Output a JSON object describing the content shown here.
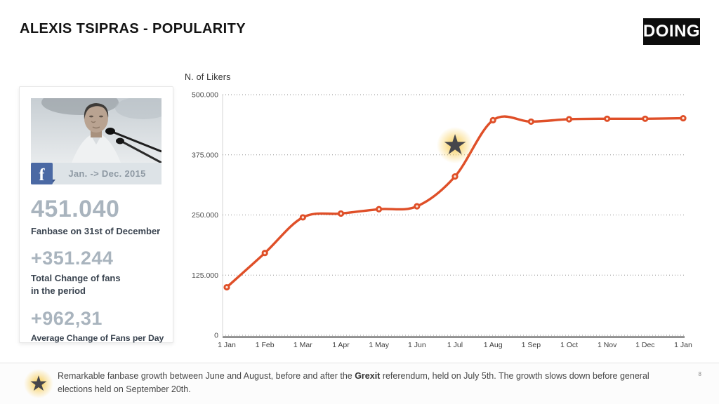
{
  "header": {
    "title": "ALEXIS TSIPRAS - POPULARITY",
    "logo_text": "DOING"
  },
  "profile_card": {
    "photo": "alexis-tsipras-speaking-photo",
    "facebook_icon_letter": "f",
    "period": "Jan. -> Dec. 2015",
    "stats": [
      {
        "value": "451.040",
        "label": "Fanbase on 31st of December"
      },
      {
        "value": "+351.244",
        "label": "Total Change of fans\nin the period"
      },
      {
        "value": "+962,31",
        "label": "Average Change of Fans per Day"
      }
    ]
  },
  "chart_data": {
    "type": "line",
    "title": "N. of Likers",
    "categories": [
      "1 Jan",
      "1 Feb",
      "1 Mar",
      "1 Apr",
      "1 May",
      "1 Jun",
      "1 Jul",
      "1 Aug",
      "1 Sep",
      "1 Oct",
      "1 Nov",
      "1 Dec",
      "1 Jan"
    ],
    "values": [
      99796,
      171000,
      245000,
      253000,
      262000,
      268000,
      330000,
      447000,
      444000,
      449000,
      450000,
      450000,
      451040
    ],
    "xlabel": "",
    "ylabel": "N. of Likers",
    "ylim": [
      0,
      500000
    ],
    "y_ticks": [
      {
        "value": 0,
        "label": "0"
      },
      {
        "value": 125000,
        "label": "125.000"
      },
      {
        "value": 250000,
        "label": "250.000"
      },
      {
        "value": 375000,
        "label": "375.000"
      },
      {
        "value": 500000,
        "label": "500.000"
      }
    ],
    "grid": "horizontal-dotted",
    "legend": "none",
    "line_color": "#df4f28",
    "marker": "circle-with-light-center",
    "annotation": {
      "icon": "star",
      "category": "1 Jul",
      "value": 395000,
      "star_color": "#46464b",
      "glow_color": "#f7c844"
    }
  },
  "footer": {
    "icon": "star",
    "note_parts": [
      "Remarkable fanbase growth between June and August, before and after the ",
      "Grexit",
      " referendum, held on July 5th. The growth slows down before general elections held on September 20th."
    ],
    "page_number": "8"
  },
  "colors": {
    "accent_line": "#df4f28",
    "stat_number": "#a9b4be",
    "stat_label": "#3a4450",
    "facebook_blue": "#4b69a4",
    "period_bar_bg": "#dde3e7",
    "star": "#46464b",
    "star_glow": "#f7c844",
    "logo_bg": "#0d0d0d"
  }
}
